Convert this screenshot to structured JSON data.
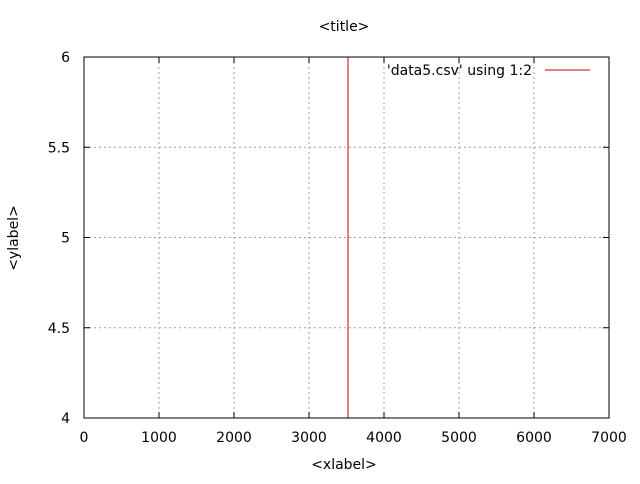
{
  "chart_data": {
    "type": "line",
    "title": "<title>",
    "xlabel": "<xlabel>",
    "ylabel": "<ylabel>",
    "xlim": [
      0,
      7000
    ],
    "ylim": [
      4,
      6
    ],
    "x_ticks": [
      0,
      1000,
      2000,
      3000,
      4000,
      5000,
      6000,
      7000
    ],
    "y_ticks": [
      4,
      4.5,
      5,
      5.5,
      6
    ],
    "x_tick_labels": [
      "0",
      "1000",
      "2000",
      "3000",
      "4000",
      "5000",
      "6000",
      "7000"
    ],
    "y_tick_labels": [
      "4",
      "4.5",
      "5",
      "5.5",
      "6"
    ],
    "grid": true,
    "legend_position": "top-right",
    "series": [
      {
        "name": "'data5.csv' using 1:2",
        "color": "#cc0000",
        "x": [
          3520,
          3520
        ],
        "y": [
          4,
          6
        ]
      }
    ]
  }
}
